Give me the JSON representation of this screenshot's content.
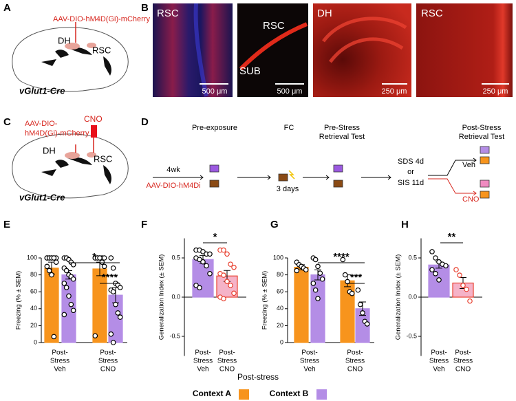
{
  "panel_letters": [
    "A",
    "B",
    "C",
    "D",
    "E",
    "F",
    "G",
    "H"
  ],
  "panel_a": {
    "virus": "AAV-DIO-hM4D(Gi)-mCherry",
    "region1": "DH",
    "region2": "RSC",
    "mouse": "vGlut1-Cre"
  },
  "panel_b": {
    "images": [
      {
        "labels": [
          "RSC"
        ],
        "scale": "500 μm"
      },
      {
        "labels": [
          "RSC",
          "SUB"
        ],
        "scale": "500 μm"
      },
      {
        "labels": [
          "DH"
        ],
        "scale": "250 μm"
      },
      {
        "labels": [
          "RSC"
        ],
        "scale": "250 μm"
      }
    ]
  },
  "panel_c": {
    "virus": [
      "AAV-DIO-",
      "hM4D(Gi)-mCherry"
    ],
    "drug": "CNO",
    "region1": "DH",
    "region2": "RSC",
    "mouse": "vGlut1-Cre"
  },
  "panel_d": {
    "stage1": "Pre-exposure",
    "stage2": "FC",
    "stage3": [
      "Pre-Stress",
      "Retrieval Test"
    ],
    "stage4": [
      "Post-Stress",
      "Retrieval Test"
    ],
    "delay1": "4wk",
    "virus": "AAV-DIO-hM4Di",
    "delay2": "3 days",
    "stress": [
      "SDS 4d",
      "or",
      "SIS 11d"
    ],
    "veh": "Veh",
    "cno": "CNO"
  },
  "shared_xlabel": "Post-stress",
  "chart_data": [
    {
      "type": "bar",
      "ylabel": "Freezing (% ± SEM)",
      "ylim": [
        0,
        100
      ],
      "yticks": [
        0,
        20,
        40,
        60,
        80,
        100
      ],
      "categories": [
        [
          "Post-",
          "Stress",
          "Veh"
        ],
        [
          "Post-",
          "Stress",
          "CNO"
        ]
      ],
      "series": [
        {
          "name": "Context A",
          "color": "#f7941d",
          "values": [
            88,
            87
          ],
          "errors": [
            7,
            8
          ],
          "points": [
            [
              100,
              100,
              100,
              100,
              100,
              100,
              100,
              100,
              100,
              95,
              90,
              85,
              80,
              7
            ],
            [
              100,
              100,
              100,
              100,
              100,
              100,
              100,
              100,
              95,
              90,
              8
            ]
          ]
        },
        {
          "name": "Context B",
          "color": "#b48de6",
          "values": [
            80,
            56
          ],
          "errors": [
            5,
            9
          ],
          "points": [
            [
              100,
              100,
              98,
              95,
              92,
              88,
              85,
              80,
              78,
              75,
              70,
              65,
              55,
              45,
              38,
              33
            ],
            [
              100,
              88,
              70,
              68,
              65,
              62,
              60,
              45,
              35,
              30,
              10,
              0
            ]
          ]
        }
      ],
      "significance": [
        "*",
        "****"
      ]
    },
    {
      "type": "bar",
      "ylabel": "Generalization Index (± SEM)",
      "ylim": [
        -0.75,
        0.75
      ],
      "yticks": [
        -0.5,
        {
          "value": 0,
          "label": "0.0"
        },
        0.5
      ],
      "categories": [
        [
          "Post-",
          "Stress",
          "Veh"
        ],
        [
          "Post-",
          "Stress",
          "CNO"
        ]
      ],
      "series": [
        {
          "colors": [
            "#b48de6",
            "#f5b3c8"
          ],
          "edge_colors": [
            "#b48de6",
            "#e8402f"
          ],
          "values": [
            0.48,
            0.27
          ],
          "errors": [
            0.05,
            0.07
          ],
          "points": [
            [
              0.6,
              0.6,
              0.58,
              0.55,
              0.55,
              0.5,
              0.48,
              0.45,
              0.4,
              0.3,
              0.15,
              0.12
            ],
            [
              0.6,
              0.6,
              0.55,
              0.42,
              0.38,
              0.3,
              0.28,
              0.2,
              0.15,
              0.05,
              0,
              -0.02
            ]
          ]
        }
      ],
      "significance": [
        "*"
      ]
    },
    {
      "type": "bar",
      "ylabel": "Freezing (% ± SEM)",
      "ylim": [
        0,
        100
      ],
      "yticks": [
        0,
        20,
        40,
        60,
        80,
        100
      ],
      "categories": [
        [
          "Post-",
          "Stress",
          "Veh"
        ],
        [
          "Post-",
          "Stress",
          "CNO"
        ]
      ],
      "series": [
        {
          "name": "Context A",
          "color": "#f7941d",
          "values": [
            89,
            73
          ],
          "errors": [
            3,
            7
          ],
          "points": [
            [
              95,
              92,
              90,
              88,
              86,
              85
            ],
            [
              98,
              80,
              72,
              60,
              58
            ]
          ]
        },
        {
          "name": "Context B",
          "color": "#b48de6",
          "values": [
            80,
            40
          ],
          "errors": [
            6,
            8
          ],
          "points": [
            [
              100,
              98,
              90,
              82,
              75,
              70,
              62,
              52
            ],
            [
              62,
              45,
              35,
              25,
              22
            ]
          ]
        }
      ],
      "significance": [
        "****",
        "***"
      ]
    },
    {
      "type": "bar",
      "ylabel": "Generalization Index (± SEM)",
      "ylim": [
        -0.75,
        0.75
      ],
      "yticks": [
        -0.5,
        {
          "value": 0,
          "label": "0.0"
        },
        0.5
      ],
      "categories": [
        [
          "Post-",
          "Stress",
          "Veh"
        ],
        [
          "Post-",
          "Stress",
          "CNO"
        ]
      ],
      "series": [
        {
          "colors": [
            "#b48de6",
            "#f5b3c8"
          ],
          "edge_colors": [
            "#b48de6",
            "#e8402f"
          ],
          "values": [
            0.41,
            0.18
          ],
          "errors": [
            0.04,
            0.07
          ],
          "points": [
            [
              0.58,
              0.5,
              0.45,
              0.42,
              0.4,
              0.35,
              0.3,
              0.22
            ],
            [
              0.35,
              0.28,
              0.15,
              0.1,
              -0.05
            ]
          ]
        }
      ],
      "significance": [
        "**"
      ]
    }
  ]
}
